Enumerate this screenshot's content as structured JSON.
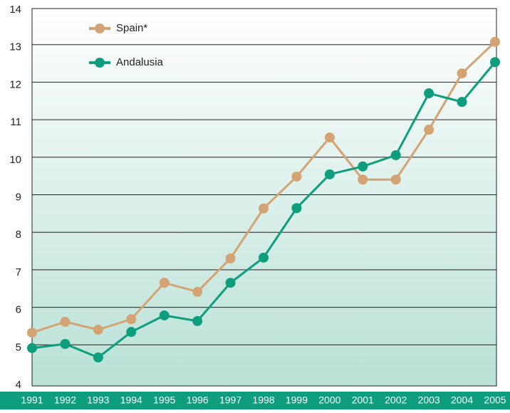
{
  "chart_data": {
    "type": "line",
    "categories": [
      "1991",
      "1992",
      "1993",
      "1994",
      "1995",
      "1996",
      "1997",
      "1998",
      "1999",
      "2000",
      "2001",
      "2002",
      "2003",
      "2004",
      "2005"
    ],
    "series": [
      {
        "name": "Spain*",
        "color": "#d4a373",
        "values": [
          5.4,
          5.69,
          5.48,
          5.76,
          6.73,
          6.49,
          7.38,
          8.71,
          9.56,
          10.6,
          9.48,
          9.48,
          10.81,
          12.31,
          13.15
        ]
      },
      {
        "name": "Andalusia",
        "color": "#0f9e7d",
        "values": [
          4.99,
          5.1,
          4.74,
          5.42,
          5.86,
          5.71,
          6.73,
          7.4,
          8.72,
          9.62,
          9.83,
          10.13,
          11.78,
          11.55,
          12.61
        ]
      }
    ],
    "ylim": [
      4,
      14
    ],
    "yticks": [
      4,
      5,
      6,
      7,
      8,
      9,
      10,
      11,
      12,
      13,
      14
    ],
    "grid": true,
    "legend": "top-left"
  }
}
